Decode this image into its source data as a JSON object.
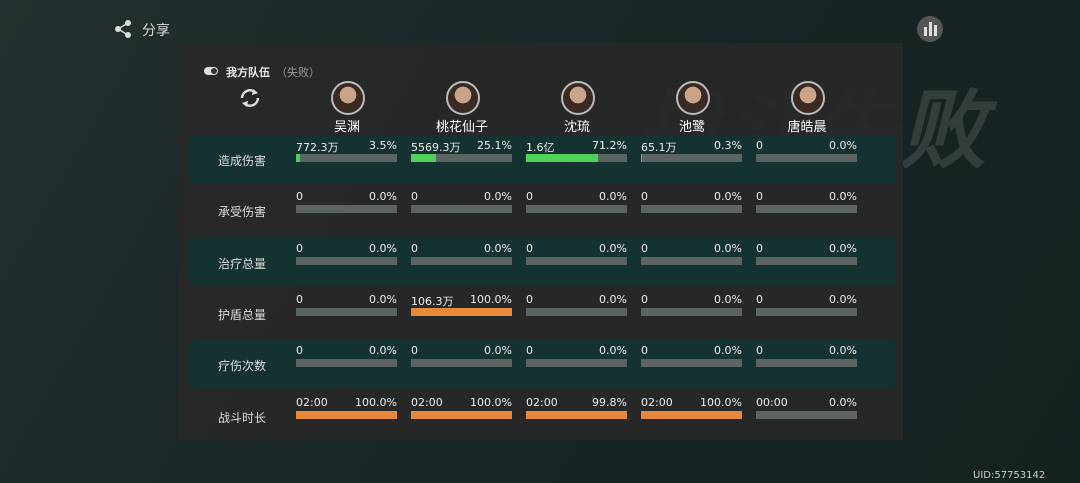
{
  "share": "分享",
  "uid": "UID:57753142",
  "background_title": "战斗失败",
  "team": {
    "title": "我方队伍",
    "status": "（失败）"
  },
  "characters": [
    "吴渊",
    "桃花仙子",
    "沈琉",
    "池鹭",
    "唐皓晨"
  ],
  "rows": [
    {
      "label": "造成伤害",
      "bar_color": "#4fd25a",
      "cells": [
        {
          "value": "772.3万",
          "share": 3.5,
          "share_label": "3.5%"
        },
        {
          "value": "5569.3万",
          "share": 25.1,
          "share_label": "25.1%"
        },
        {
          "value": "1.6亿",
          "share": 71.2,
          "share_label": "71.2%"
        },
        {
          "value": "65.1万",
          "share": 0.3,
          "share_label": "0.3%"
        },
        {
          "value": "0",
          "share": 0,
          "share_label": "0.0%"
        }
      ]
    },
    {
      "label": "承受伤害",
      "bar_color": "#e8893a",
      "cells": [
        {
          "value": "0",
          "share": 0,
          "share_label": "0.0%"
        },
        {
          "value": "0",
          "share": 0,
          "share_label": "0.0%"
        },
        {
          "value": "0",
          "share": 0,
          "share_label": "0.0%"
        },
        {
          "value": "0",
          "share": 0,
          "share_label": "0.0%"
        },
        {
          "value": "0",
          "share": 0,
          "share_label": "0.0%"
        }
      ]
    },
    {
      "label": "治疗总量",
      "bar_color": "#4fd25a",
      "cells": [
        {
          "value": "0",
          "share": 0,
          "share_label": "0.0%"
        },
        {
          "value": "0",
          "share": 0,
          "share_label": "0.0%"
        },
        {
          "value": "0",
          "share": 0,
          "share_label": "0.0%"
        },
        {
          "value": "0",
          "share": 0,
          "share_label": "0.0%"
        },
        {
          "value": "0",
          "share": 0,
          "share_label": "0.0%"
        }
      ]
    },
    {
      "label": "护盾总量",
      "bar_color": "#e8893a",
      "cells": [
        {
          "value": "0",
          "share": 0,
          "share_label": "0.0%"
        },
        {
          "value": "106.3万",
          "share": 100,
          "share_label": "100.0%"
        },
        {
          "value": "0",
          "share": 0,
          "share_label": "0.0%"
        },
        {
          "value": "0",
          "share": 0,
          "share_label": "0.0%"
        },
        {
          "value": "0",
          "share": 0,
          "share_label": "0.0%"
        }
      ]
    },
    {
      "label": "疗伤次数",
      "bar_color": "#4fd25a",
      "cells": [
        {
          "value": "0",
          "share": 0,
          "share_label": "0.0%"
        },
        {
          "value": "0",
          "share": 0,
          "share_label": "0.0%"
        },
        {
          "value": "0",
          "share": 0,
          "share_label": "0.0%"
        },
        {
          "value": "0",
          "share": 0,
          "share_label": "0.0%"
        },
        {
          "value": "0",
          "share": 0,
          "share_label": "0.0%"
        }
      ]
    },
    {
      "label": "战斗时长",
      "bar_color": "#e8893a",
      "cells": [
        {
          "value": "02:00",
          "share": 100,
          "share_label": "100.0%"
        },
        {
          "value": "02:00",
          "share": 100,
          "share_label": "100.0%"
        },
        {
          "value": "02:00",
          "share": 99.8,
          "share_label": "99.8%"
        },
        {
          "value": "02:00",
          "share": 100,
          "share_label": "100.0%"
        },
        {
          "value": "00:00",
          "share": 0,
          "share_label": "0.0%"
        }
      ]
    }
  ]
}
